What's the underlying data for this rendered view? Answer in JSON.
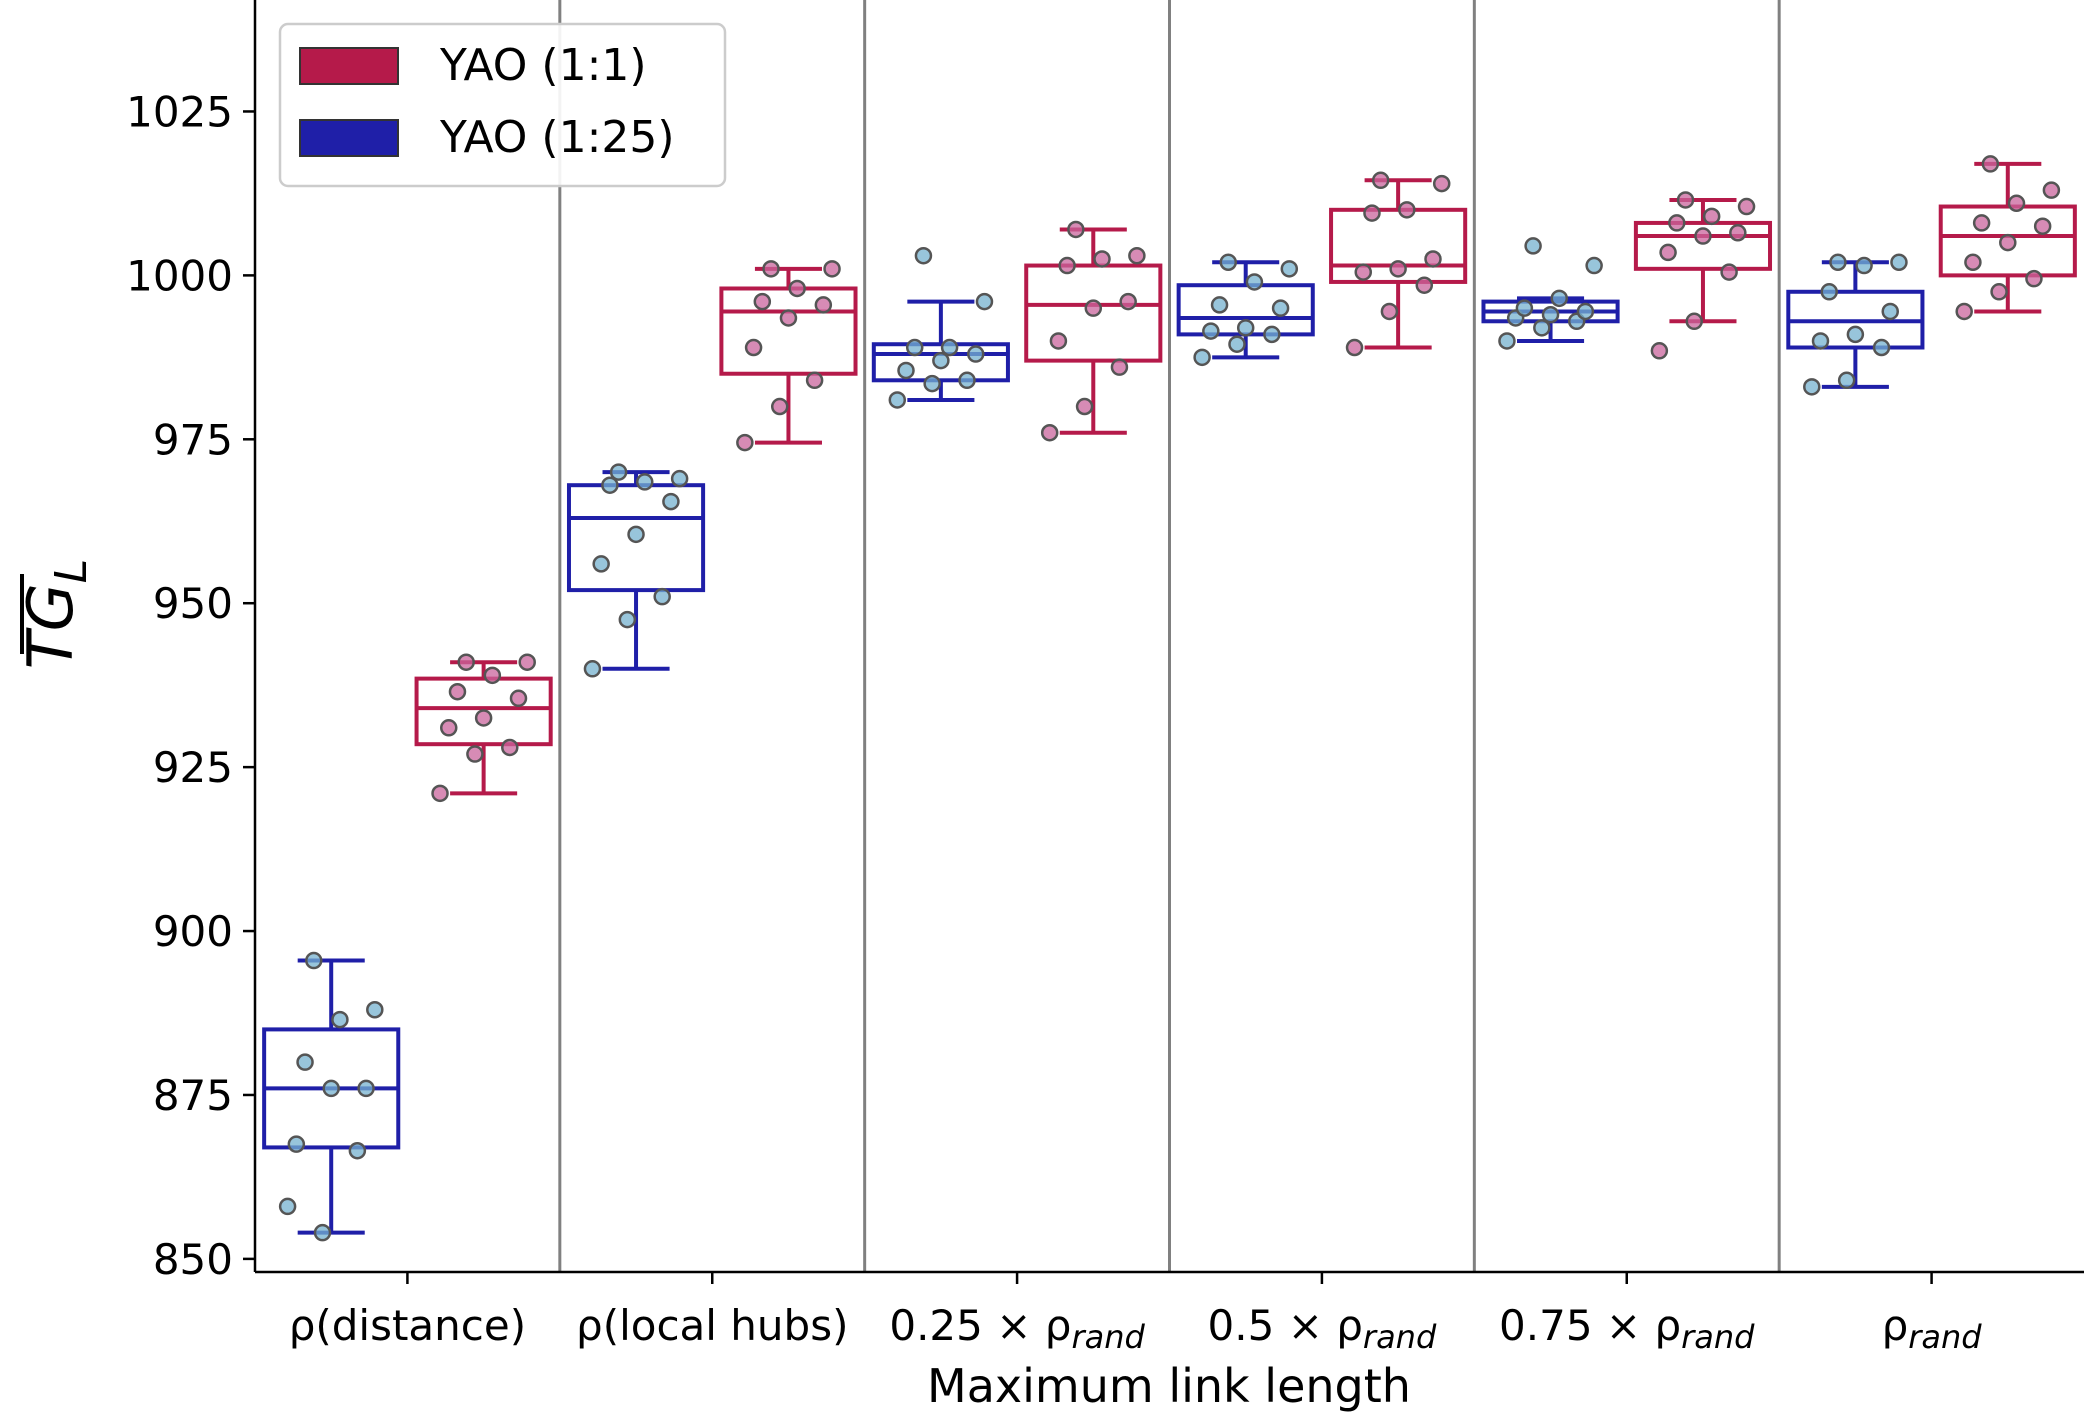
{
  "chart_data": {
    "type": "box",
    "xlabel": "Maximum link length",
    "ylabel": "TG",
    "ylabel_sub": "L",
    "ylim": [
      848,
      1042
    ],
    "yticks": [
      850,
      875,
      900,
      925,
      950,
      975,
      1000,
      1025
    ],
    "categories": [
      {
        "label": "ρ(distance)",
        "base": "ρ(distance)",
        "sub": ""
      },
      {
        "label": "ρ(local hubs)",
        "base": "ρ(local hubs)",
        "sub": ""
      },
      {
        "label": "0.25 × ρrand",
        "base": "0.25 × ρ",
        "sub": "rand"
      },
      {
        "label": "0.5 × ρrand",
        "base": "0.5 × ρ",
        "sub": "rand"
      },
      {
        "label": "0.75 × ρrand",
        "base": "0.75 × ρ",
        "sub": "rand"
      },
      {
        "label": "ρrand",
        "base": "ρ",
        "sub": "rand"
      }
    ],
    "legend": {
      "position": "upper-left",
      "entries": [
        "YAO (1:1)",
        "YAO (1:25)"
      ]
    },
    "colors": {
      "YAO (1:1)": "#b51a4a",
      "YAO (1:25)": "#1f1fa8",
      "points_1_1": "#c9649c",
      "points_1_25": "#76b2cf",
      "separator": "#808080"
    },
    "series": [
      {
        "name": "YAO (1:25)",
        "boxes": [
          {
            "min": 854,
            "q1": 867,
            "median": 876,
            "q3": 885,
            "max": 895.5,
            "points": [
              858,
              854,
              866.5,
              867.5,
              876,
              876,
              880,
              886.5,
              888,
              895.5
            ]
          },
          {
            "min": 940,
            "q1": 952,
            "median": 963,
            "q3": 968,
            "max": 970,
            "points": [
              940,
              947.5,
              951,
              956,
              960.5,
              965.5,
              968,
              968.5,
              969,
              970
            ]
          },
          {
            "min": 981,
            "q1": 984,
            "median": 988,
            "q3": 989.5,
            "max": 996,
            "points": [
              981,
              983.5,
              984,
              985.5,
              987,
              988,
              989,
              989,
              996,
              1003
            ]
          },
          {
            "min": 987.5,
            "q1": 991,
            "median": 993.5,
            "q3": 998.5,
            "max": 1002,
            "points": [
              987.5,
              989.5,
              991,
              991.5,
              992,
              995,
              995.5,
              999,
              1001,
              1002
            ]
          },
          {
            "min": 990,
            "q1": 993,
            "median": 994.5,
            "q3": 996,
            "max": 996.5,
            "points": [
              990,
              992,
              993,
              993.5,
              994,
              994.5,
              995,
              996.5,
              1001.5,
              1004.5
            ]
          },
          {
            "min": 983,
            "q1": 989,
            "median": 993,
            "q3": 997.5,
            "max": 1002,
            "points": [
              983,
              984,
              989,
              990,
              991,
              994.5,
              997.5,
              1001.5,
              1002,
              1002
            ]
          }
        ]
      },
      {
        "name": "YAO (1:1)",
        "boxes": [
          {
            "min": 921,
            "q1": 928.5,
            "median": 934,
            "q3": 938.5,
            "max": 941,
            "points": [
              921,
              927,
              928,
              931,
              932.5,
              935.5,
              936.5,
              939,
              941,
              941
            ]
          },
          {
            "min": 974.5,
            "q1": 985,
            "median": 994.5,
            "q3": 998,
            "max": 1001,
            "points": [
              974.5,
              980,
              984,
              989,
              993.5,
              995.5,
              996,
              998,
              1001,
              1001
            ]
          },
          {
            "min": 976,
            "q1": 987,
            "median": 995.5,
            "q3": 1001.5,
            "max": 1007,
            "points": [
              976,
              980,
              986,
              990,
              995,
              996,
              1001.5,
              1002.5,
              1003,
              1007
            ]
          },
          {
            "min": 989,
            "q1": 999,
            "median": 1001.5,
            "q3": 1010,
            "max": 1014.5,
            "points": [
              989,
              994.5,
              998.5,
              1000.5,
              1001,
              1002.5,
              1009.5,
              1010,
              1014,
              1014.5
            ]
          },
          {
            "min": 993,
            "q1": 1001,
            "median": 1006,
            "q3": 1008,
            "max": 1011.5,
            "points": [
              988.5,
              993,
              1000.5,
              1003.5,
              1006,
              1006.5,
              1008,
              1009,
              1010.5,
              1011.5
            ]
          },
          {
            "min": 994.5,
            "q1": 1000,
            "median": 1006,
            "q3": 1010.5,
            "max": 1017,
            "points": [
              994.5,
              997.5,
              999.5,
              1002,
              1005,
              1007.5,
              1008,
              1011,
              1013,
              1017
            ]
          }
        ]
      }
    ]
  }
}
